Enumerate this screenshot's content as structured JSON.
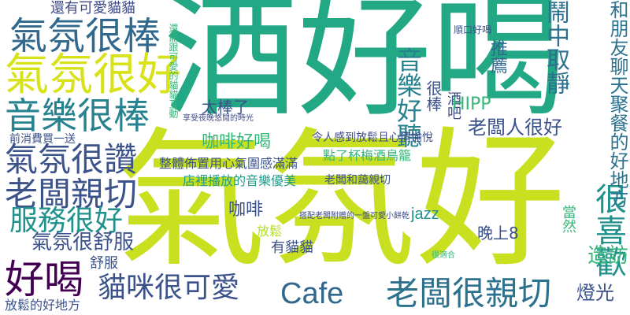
{
  "word_cloud": {
    "title": "",
    "background": "#ffffff",
    "palette": {
      "purple": "#440154",
      "indigo": "#3b528b",
      "blue": "#31688e",
      "teal": "#21918c",
      "green": "#35b779",
      "lime": "#90d743",
      "yellow": "#c8e020"
    },
    "words": [
      {
        "id": "w01",
        "text": "酒好喝",
        "color": "#22a884"
      },
      {
        "id": "w02",
        "text": "氣氛好",
        "color": "#c8e020"
      },
      {
        "id": "w03",
        "text": "氣氛很好",
        "color": "#d8e219"
      },
      {
        "id": "w04",
        "text": "氣氛很棒",
        "color": "#31688e"
      },
      {
        "id": "w05",
        "text": "音樂很棒",
        "color": "#26828e"
      },
      {
        "id": "w06",
        "text": "氣氛很讚",
        "color": "#3b528b"
      },
      {
        "id": "w07",
        "text": "老闆親切",
        "color": "#3b528b"
      },
      {
        "id": "w08",
        "text": "服務很好",
        "color": "#21918c"
      },
      {
        "id": "w09",
        "text": "好喝",
        "color": "#440154"
      },
      {
        "id": "w10",
        "text": "貓咪很可愛",
        "color": "#3b528b"
      },
      {
        "id": "w11",
        "text": "Cafe",
        "color": "#31688e"
      },
      {
        "id": "w12",
        "text": "老闆很親切",
        "color": "#2c728e"
      },
      {
        "id": "w13",
        "text": "氣氛很舒服",
        "color": "#3b528b"
      },
      {
        "id": "w14",
        "text": "還有可愛貓貓",
        "color": "#3e4989"
      },
      {
        "id": "w15",
        "text": "音樂好聽",
        "color": "#26828e"
      },
      {
        "id": "w16",
        "text": "鬧中取靜",
        "color": "#2c728e"
      },
      {
        "id": "w17",
        "text": "很喜歡",
        "color": "#21918c"
      },
      {
        "id": "w18",
        "text": "和朋友聊天聚餐的好地方",
        "color": "#2c728e"
      },
      {
        "id": "w19",
        "text": "老闆人很好",
        "color": "#3b528b"
      },
      {
        "id": "w20",
        "text": "推薦",
        "color": "#31688e"
      },
      {
        "id": "w21",
        "text": "很棒",
        "color": "#3b528b"
      },
      {
        "id": "w22",
        "text": "酒吧",
        "color": "#3e4989"
      },
      {
        "id": "w23",
        "text": "HIPP",
        "color": "#35b779"
      },
      {
        "id": "w24",
        "text": "太棒了",
        "color": "#3b528b"
      },
      {
        "id": "w25",
        "text": "咖啡好喝",
        "color": "#35b779"
      },
      {
        "id": "w26",
        "text": "前消費買一送",
        "color": "#3b528b"
      },
      {
        "id": "w27",
        "text": "令人感到放鬆且心情愉悅",
        "color": "#3e4989"
      },
      {
        "id": "w28",
        "text": "點了杯梅酒鳥籠",
        "color": "#35b779"
      },
      {
        "id": "w29",
        "text": "整體佈置用心氣圍感滿滿",
        "color": "#3b528b"
      },
      {
        "id": "w30",
        "text": "店裡播放的音樂優美",
        "color": "#1f9e89"
      },
      {
        "id": "w31",
        "text": "老闆和藹親切",
        "color": "#3b528b"
      },
      {
        "id": "w32",
        "text": "咖啡",
        "color": "#3b528b"
      },
      {
        "id": "w33",
        "text": "jazz",
        "color": "#21918c"
      },
      {
        "id": "w34",
        "text": "晚上8",
        "color": "#3b528b"
      },
      {
        "id": "w35",
        "text": "當然",
        "color": "#35b779"
      },
      {
        "id": "w36",
        "text": "造訪",
        "color": "#35b779"
      },
      {
        "id": "w37",
        "text": "燈光",
        "color": "#3b528b"
      },
      {
        "id": "w38",
        "text": "有貓貓",
        "color": "#3b528b"
      },
      {
        "id": "w39",
        "text": "放鬆",
        "color": "#b5de2b"
      },
      {
        "id": "w40",
        "text": "舒服",
        "color": "#3b528b"
      },
      {
        "id": "w41",
        "text": "放鬆的好地方",
        "color": "#3b528b"
      },
      {
        "id": "w42",
        "text": "順口好喝",
        "color": "#3b528b"
      },
      {
        "id": "w43",
        "text": "享受夜晚悠閒的時光",
        "color": "#3e4989"
      },
      {
        "id": "w44",
        "text": "搭配老闆附贈的一盤可愛小餅乾",
        "color": "#3e4989"
      },
      {
        "id": "w45",
        "text": "還能跟可愛的貓貓互動",
        "color": "#35b779"
      },
      {
        "id": "w46",
        "text": "很適合",
        "color": "#35b779"
      }
    ]
  }
}
